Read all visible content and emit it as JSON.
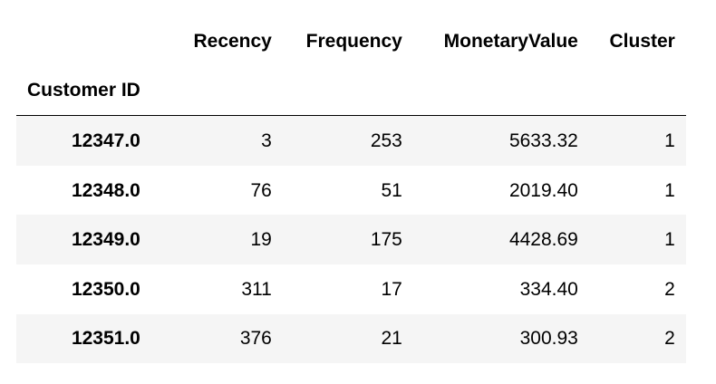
{
  "table": {
    "index_name": "Customer ID",
    "columns": [
      "Recency",
      "Frequency",
      "MonetaryValue",
      "Cluster"
    ],
    "rows": [
      {
        "index": "12347.0",
        "values": [
          "3",
          "253",
          "5633.32",
          "1"
        ]
      },
      {
        "index": "12348.0",
        "values": [
          "76",
          "51",
          "2019.40",
          "1"
        ]
      },
      {
        "index": "12349.0",
        "values": [
          "19",
          "175",
          "4428.69",
          "1"
        ]
      },
      {
        "index": "12350.0",
        "values": [
          "311",
          "17",
          "334.40",
          "2"
        ]
      },
      {
        "index": "12351.0",
        "values": [
          "376",
          "21",
          "300.93",
          "2"
        ]
      }
    ]
  }
}
